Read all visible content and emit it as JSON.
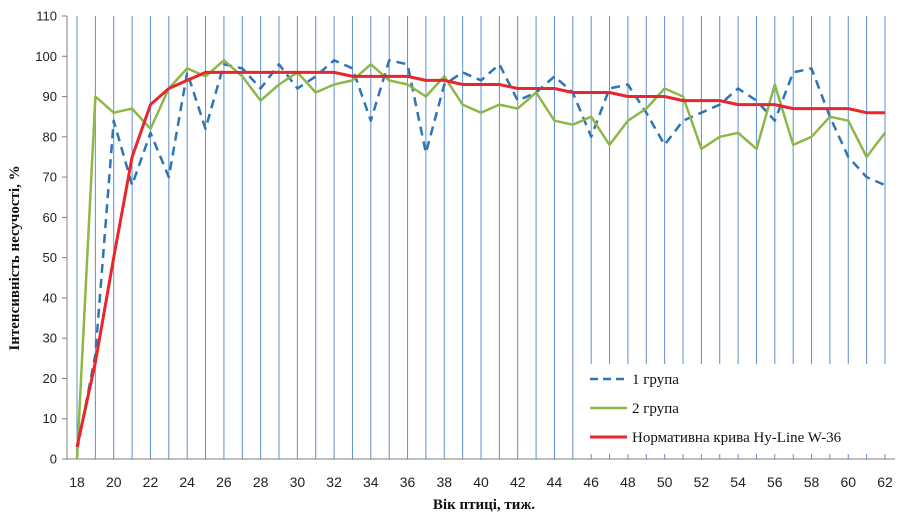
{
  "chart_data": {
    "type": "line",
    "title": "",
    "xlabel": "Вік птиці, тиж.",
    "ylabel": "Інтенсивність несучості, %",
    "xlim": [
      18,
      62
    ],
    "ylim": [
      0,
      110
    ],
    "y_ticks": [
      0,
      10,
      20,
      30,
      40,
      50,
      60,
      70,
      80,
      90,
      100,
      110
    ],
    "x_ticks": [
      18,
      20,
      22,
      24,
      26,
      28,
      30,
      32,
      34,
      36,
      38,
      40,
      42,
      44,
      46,
      48,
      50,
      52,
      54,
      56,
      58,
      60,
      62
    ],
    "x": [
      18,
      19,
      20,
      21,
      22,
      23,
      24,
      25,
      26,
      27,
      28,
      29,
      30,
      31,
      32,
      33,
      34,
      35,
      36,
      37,
      38,
      39,
      40,
      41,
      42,
      43,
      44,
      45,
      46,
      47,
      48,
      49,
      50,
      51,
      52,
      53,
      54,
      55,
      56,
      57,
      58,
      59,
      60,
      61,
      62
    ],
    "grid": "vertical",
    "legend_position": "bottom-right",
    "series": [
      {
        "name": "1 група",
        "color": "#2e75b6",
        "style": "dashed",
        "values": [
          2,
          26,
          84,
          68,
          81,
          70,
          96,
          82,
          98,
          97,
          92,
          98,
          92,
          95,
          99,
          97,
          84,
          99,
          98,
          76,
          93,
          96,
          94,
          98,
          89,
          91,
          95,
          91,
          80,
          92,
          93,
          86,
          78,
          84,
          86,
          88,
          92,
          89,
          84,
          96,
          97,
          85,
          75,
          70,
          68
        ]
      },
      {
        "name": "2 група",
        "color": "#8db849",
        "style": "solid",
        "values": [
          0,
          90,
          86,
          87,
          82,
          92,
          97,
          95,
          99,
          95,
          89,
          93,
          96,
          91,
          93,
          94,
          98,
          94,
          93,
          90,
          95,
          88,
          86,
          88,
          87,
          91,
          84,
          83,
          85,
          78,
          84,
          87,
          92,
          90,
          77,
          80,
          81,
          77,
          93,
          78,
          80,
          85,
          84,
          75,
          81
        ]
      },
      {
        "name": "Нормативна крива Hy-Line  W-36",
        "color": "#e8262b",
        "style": "solid",
        "values": [
          3,
          24,
          50,
          75,
          88,
          92,
          94,
          96,
          96,
          96,
          96,
          96,
          96,
          96,
          96,
          95,
          95,
          95,
          95,
          94,
          94,
          93,
          93,
          93,
          92,
          92,
          92,
          91,
          91,
          91,
          90,
          90,
          90,
          89,
          89,
          89,
          88,
          88,
          88,
          87,
          87,
          87,
          87,
          86,
          86
        ]
      }
    ]
  }
}
